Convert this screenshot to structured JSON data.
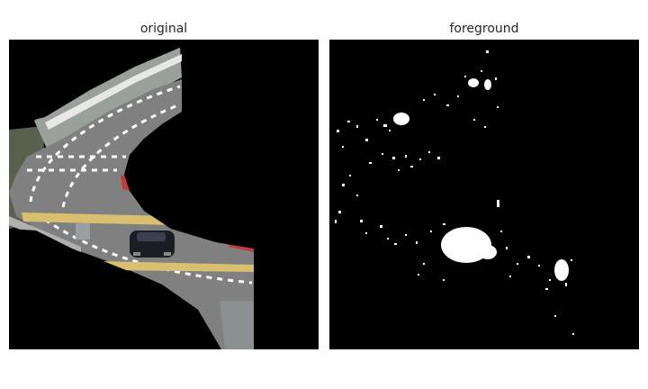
{
  "panels": [
    {
      "title": "original"
    },
    {
      "title": "foreground"
    }
  ],
  "colors": {
    "background": "#000000",
    "foreground_mask": "#ffffff",
    "road": "#7d7d7d",
    "barrier_red": "#c23a3a",
    "hatch_yellow": "#d8c070",
    "car": "#1a1d24"
  }
}
